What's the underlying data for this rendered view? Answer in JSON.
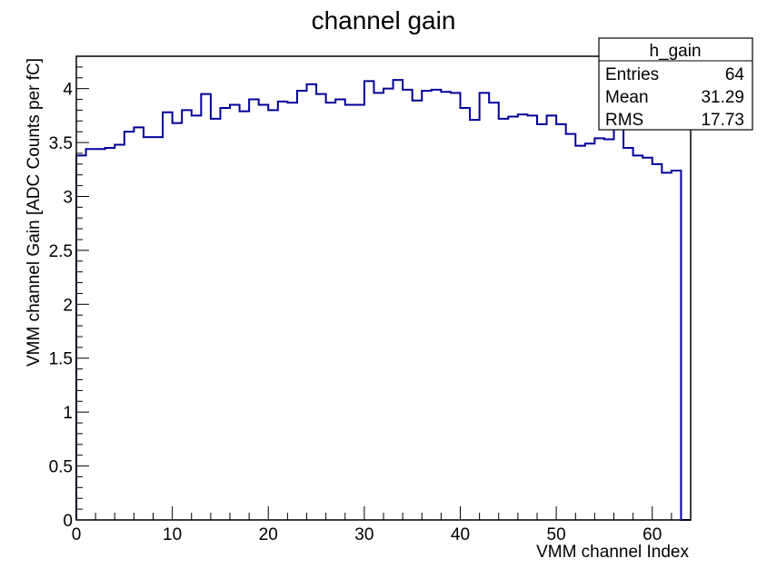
{
  "chart_data": {
    "type": "bar",
    "title": "channel gain",
    "xlabel": "VMM channel Index",
    "ylabel": "VMM channel Gain [ADC Counts per fC]",
    "xlim": [
      0,
      64
    ],
    "ylim": [
      0,
      4.3
    ],
    "x_ticks": [
      "0",
      "10",
      "20",
      "30",
      "40",
      "50",
      "60"
    ],
    "y_ticks": [
      "0",
      "0.5",
      "1",
      "1.5",
      "2",
      "2.5",
      "3",
      "3.5",
      "4"
    ],
    "bin_edges": [
      0,
      64
    ],
    "values": [
      3.38,
      3.44,
      3.44,
      3.45,
      3.48,
      3.6,
      3.64,
      3.55,
      3.55,
      3.78,
      3.68,
      3.8,
      3.75,
      3.95,
      3.72,
      3.82,
      3.85,
      3.79,
      3.9,
      3.85,
      3.8,
      3.88,
      3.87,
      3.98,
      4.04,
      3.95,
      3.87,
      3.9,
      3.85,
      3.85,
      4.07,
      3.96,
      4.0,
      4.08,
      3.99,
      3.89,
      3.98,
      3.99,
      3.97,
      3.96,
      3.82,
      3.71,
      3.96,
      3.87,
      3.72,
      3.74,
      3.76,
      3.75,
      3.67,
      3.75,
      3.67,
      3.58,
      3.47,
      3.49,
      3.54,
      3.53,
      3.72,
      3.45,
      3.38,
      3.36,
      3.3,
      3.22,
      3.24,
      0
    ],
    "line_color": "#000099",
    "grid": false,
    "stats_box": {
      "title": "h_gain",
      "rows": [
        {
          "label": "Entries",
          "value": "64"
        },
        {
          "label": "Mean",
          "value": "31.29"
        },
        {
          "label": "RMS",
          "value": "17.73"
        }
      ]
    }
  }
}
